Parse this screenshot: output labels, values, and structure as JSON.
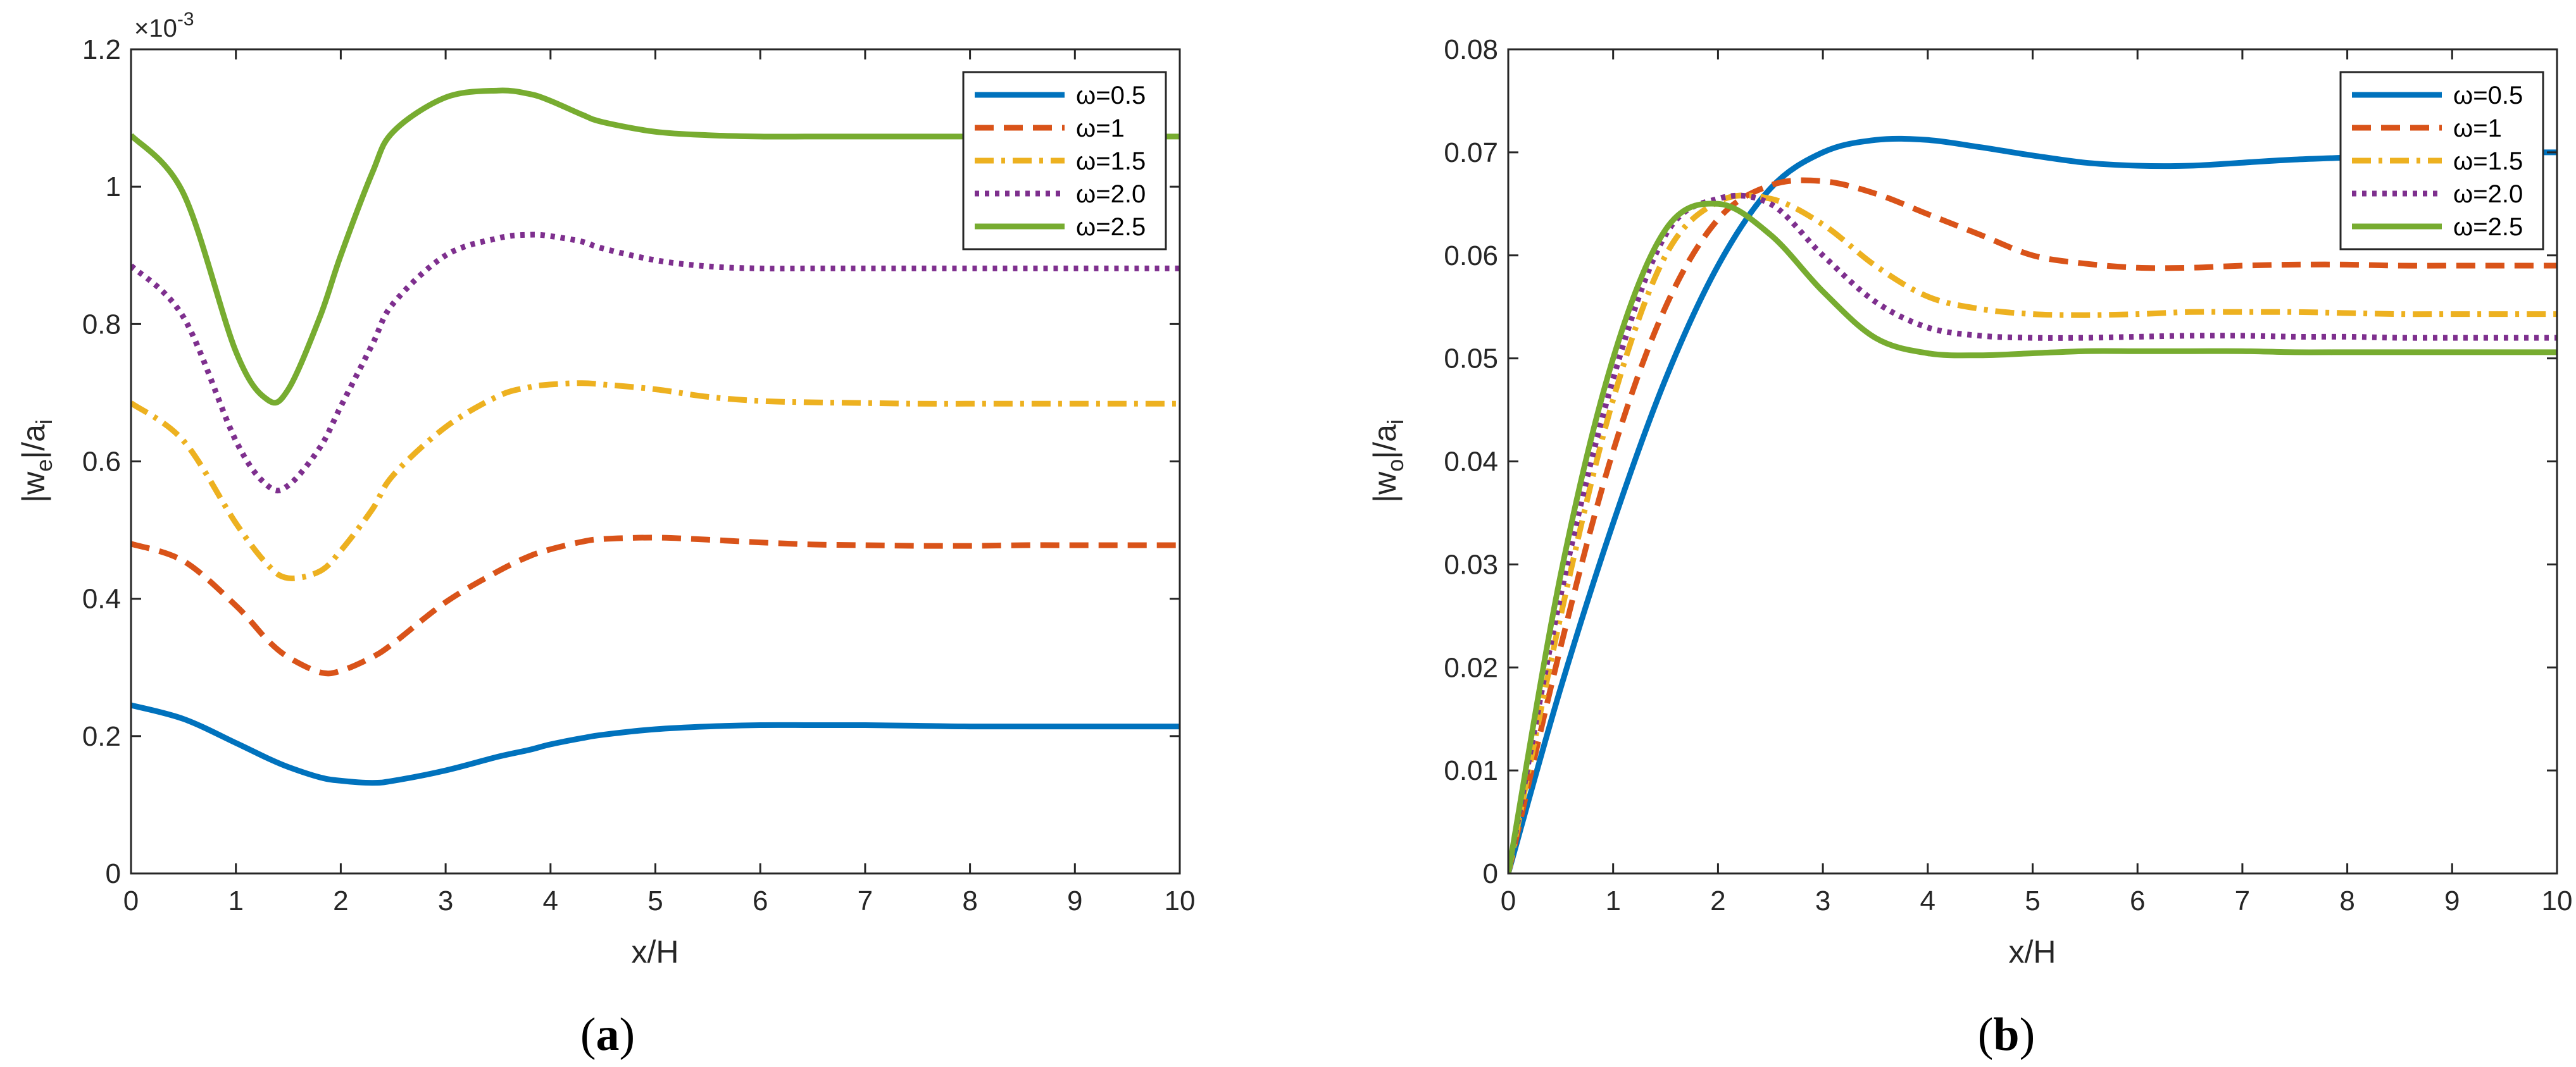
{
  "chart_data": [
    {
      "type": "line",
      "panel": "a",
      "caption": {
        "open": "(",
        "letter": "a",
        "close": ")"
      },
      "xlabel": "x/H",
      "ylabel": {
        "main": "|w",
        "sub": "e",
        "mid": "|/a",
        "sub2": "i"
      },
      "xlim": [
        0,
        10
      ],
      "ylim": [
        0,
        1.2
      ],
      "x_ticks": [
        0,
        1,
        2,
        3,
        4,
        5,
        6,
        7,
        8,
        9,
        10
      ],
      "y_ticks": [
        0,
        0.2,
        0.4,
        0.6,
        0.8,
        1,
        1.2
      ],
      "y_tick_labels": [
        "0",
        "0.2",
        "0.4",
        "0.6",
        "0.8",
        "1",
        "1.2"
      ],
      "y_exponent": {
        "base": "×10",
        "power": "-3"
      },
      "legend_position": "top-right",
      "grid": false,
      "x": [
        0,
        0.5,
        1,
        1.3,
        1.5,
        1.8,
        2,
        2.3,
        2.5,
        3,
        3.5,
        3.8,
        4,
        4.3,
        4.5,
        5,
        5.5,
        6,
        6.5,
        7,
        7.5,
        8,
        8.5,
        9,
        9.5,
        10
      ],
      "series": [
        {
          "name": "ω=0.5",
          "color": "#0072BD",
          "style": "solid",
          "values": [
            0.245,
            0.225,
            0.19,
            0.168,
            0.155,
            0.14,
            0.135,
            0.132,
            0.135,
            0.15,
            0.17,
            0.18,
            0.188,
            0.197,
            0.202,
            0.21,
            0.214,
            0.216,
            0.216,
            0.216,
            0.215,
            0.214,
            0.214,
            0.214,
            0.214,
            0.214
          ]
        },
        {
          "name": "ω=1",
          "color": "#D95319",
          "style": "dashed",
          "values": [
            0.48,
            0.455,
            0.39,
            0.34,
            0.315,
            0.293,
            0.295,
            0.315,
            0.335,
            0.395,
            0.44,
            0.462,
            0.472,
            0.483,
            0.487,
            0.489,
            0.486,
            0.482,
            0.479,
            0.478,
            0.477,
            0.477,
            0.478,
            0.478,
            0.478,
            0.478
          ]
        },
        {
          "name": "ω=1.5",
          "color": "#EDB120",
          "style": "dashdot",
          "values": [
            0.685,
            0.63,
            0.51,
            0.45,
            0.43,
            0.44,
            0.47,
            0.53,
            0.58,
            0.65,
            0.695,
            0.708,
            0.712,
            0.714,
            0.712,
            0.705,
            0.694,
            0.688,
            0.686,
            0.685,
            0.684,
            0.684,
            0.684,
            0.684,
            0.684,
            0.684
          ]
        },
        {
          "name": "ω=2.0",
          "color": "#7E2F8E",
          "style": "dotted",
          "values": [
            0.885,
            0.81,
            0.63,
            0.565,
            0.565,
            0.62,
            0.68,
            0.77,
            0.83,
            0.9,
            0.925,
            0.93,
            0.928,
            0.92,
            0.91,
            0.893,
            0.884,
            0.881,
            0.881,
            0.881,
            0.881,
            0.881,
            0.881,
            0.881,
            0.881,
            0.881
          ]
        },
        {
          "name": "ω=2.5",
          "color": "#77AC30",
          "style": "solid",
          "values": [
            1.075,
            0.99,
            0.76,
            0.69,
            0.705,
            0.81,
            0.9,
            1.02,
            1.08,
            1.13,
            1.14,
            1.135,
            1.125,
            1.105,
            1.094,
            1.08,
            1.075,
            1.073,
            1.073,
            1.073,
            1.073,
            1.073,
            1.073,
            1.073,
            1.073,
            1.073
          ]
        }
      ]
    },
    {
      "type": "line",
      "panel": "b",
      "caption": {
        "open": "(",
        "letter": "b",
        "close": ")"
      },
      "xlabel": "x/H",
      "ylabel": {
        "main": "|w",
        "sub": "o",
        "mid": "|/a",
        "sub2": "i"
      },
      "xlim": [
        0,
        10
      ],
      "ylim": [
        0,
        0.08
      ],
      "x_ticks": [
        0,
        1,
        2,
        3,
        4,
        5,
        6,
        7,
        8,
        9,
        10
      ],
      "y_ticks": [
        0,
        0.01,
        0.02,
        0.03,
        0.04,
        0.05,
        0.06,
        0.07,
        0.08
      ],
      "y_tick_labels": [
        "0",
        "0.01",
        "0.02",
        "0.03",
        "0.04",
        "0.05",
        "0.06",
        "0.07",
        "0.08"
      ],
      "legend_position": "top-right",
      "grid": false,
      "x": [
        0,
        0.5,
        1,
        1.5,
        2,
        2.5,
        3,
        3.5,
        4,
        4.5,
        5,
        5.5,
        6,
        6.5,
        7,
        7.5,
        8,
        8.5,
        9,
        9.5,
        10
      ],
      "series": [
        {
          "name": "ω=0.5",
          "color": "#0072BD",
          "style": "solid",
          "values": [
            0,
            0.018,
            0.034,
            0.048,
            0.059,
            0.0665,
            0.07,
            0.0712,
            0.0712,
            0.0705,
            0.0697,
            0.069,
            0.0687,
            0.0687,
            0.069,
            0.0693,
            0.0695,
            0.0698,
            0.07,
            0.07,
            0.07
          ]
        },
        {
          "name": "ω=1",
          "color": "#D95319",
          "style": "dashed",
          "values": [
            0,
            0.022,
            0.041,
            0.055,
            0.0635,
            0.0668,
            0.0672,
            0.066,
            0.064,
            0.062,
            0.06,
            0.0592,
            0.0588,
            0.0588,
            0.059,
            0.0591,
            0.0591,
            0.059,
            0.059,
            0.059,
            0.059
          ]
        },
        {
          "name": "ω=1.5",
          "color": "#EDB120",
          "style": "dashdot",
          "values": [
            0,
            0.025,
            0.046,
            0.06,
            0.0652,
            0.0655,
            0.063,
            0.059,
            0.056,
            0.0548,
            0.0543,
            0.0542,
            0.0543,
            0.0545,
            0.0545,
            0.0545,
            0.0544,
            0.0543,
            0.0543,
            0.0543,
            0.0543
          ]
        },
        {
          "name": "ω=2.0",
          "color": "#7E2F8E",
          "style": "dotted",
          "values": [
            0,
            0.027,
            0.048,
            0.062,
            0.0655,
            0.065,
            0.06,
            0.0555,
            0.053,
            0.0522,
            0.052,
            0.052,
            0.0521,
            0.0522,
            0.0522,
            0.0521,
            0.0521,
            0.052,
            0.052,
            0.052,
            0.052
          ]
        },
        {
          "name": "ω=2.5",
          "color": "#77AC30",
          "style": "solid",
          "values": [
            0,
            0.029,
            0.05,
            0.0625,
            0.065,
            0.062,
            0.0565,
            0.052,
            0.0505,
            0.0503,
            0.0505,
            0.0507,
            0.0507,
            0.0507,
            0.0507,
            0.0506,
            0.0506,
            0.0506,
            0.0506,
            0.0506,
            0.0506
          ]
        }
      ]
    }
  ]
}
